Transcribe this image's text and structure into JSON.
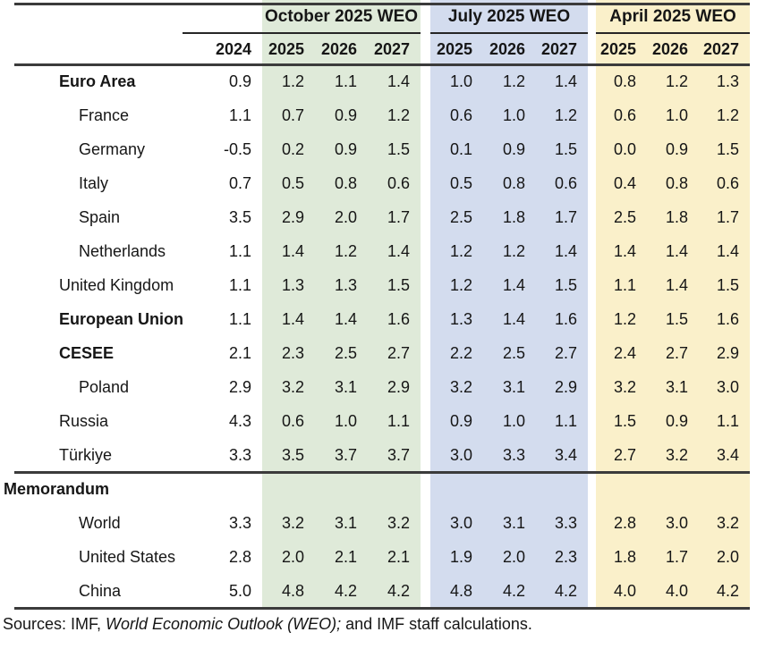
{
  "colors": {
    "october_band_bg": "#dfead9",
    "july_band_bg": "#d3dcee",
    "april_band_bg": "#faf0ca",
    "rule_color": "#3b3b3b"
  },
  "table": {
    "col_groups": [
      {
        "label": "October 2025 WEO"
      },
      {
        "label": "July 2025 WEO"
      },
      {
        "label": "April 2025 WEO"
      }
    ],
    "base_year_header": "2024",
    "year_headers": [
      "2025",
      "2026",
      "2027"
    ],
    "rows": [
      {
        "label": "Euro Area",
        "bold": true,
        "indent": 1,
        "y2024": "0.9",
        "oct": [
          "1.2",
          "1.1",
          "1.4"
        ],
        "jul": [
          "1.0",
          "1.2",
          "1.4"
        ],
        "apr": [
          "0.8",
          "1.2",
          "1.3"
        ]
      },
      {
        "label": "France",
        "bold": false,
        "indent": 2,
        "y2024": "1.1",
        "oct": [
          "0.7",
          "0.9",
          "1.2"
        ],
        "jul": [
          "0.6",
          "1.0",
          "1.2"
        ],
        "apr": [
          "0.6",
          "1.0",
          "1.2"
        ]
      },
      {
        "label": "Germany",
        "bold": false,
        "indent": 2,
        "y2024": "-0.5",
        "oct": [
          "0.2",
          "0.9",
          "1.5"
        ],
        "jul": [
          "0.1",
          "0.9",
          "1.5"
        ],
        "apr": [
          "0.0",
          "0.9",
          "1.5"
        ]
      },
      {
        "label": "Italy",
        "bold": false,
        "indent": 2,
        "y2024": "0.7",
        "oct": [
          "0.5",
          "0.8",
          "0.6"
        ],
        "jul": [
          "0.5",
          "0.8",
          "0.6"
        ],
        "apr": [
          "0.4",
          "0.8",
          "0.6"
        ]
      },
      {
        "label": "Spain",
        "bold": false,
        "indent": 2,
        "y2024": "3.5",
        "oct": [
          "2.9",
          "2.0",
          "1.7"
        ],
        "jul": [
          "2.5",
          "1.8",
          "1.7"
        ],
        "apr": [
          "2.5",
          "1.8",
          "1.7"
        ]
      },
      {
        "label": "Netherlands",
        "bold": false,
        "indent": 2,
        "y2024": "1.1",
        "oct": [
          "1.4",
          "1.2",
          "1.4"
        ],
        "jul": [
          "1.2",
          "1.2",
          "1.4"
        ],
        "apr": [
          "1.4",
          "1.4",
          "1.4"
        ]
      },
      {
        "label": "United Kingdom",
        "bold": false,
        "indent": 1,
        "y2024": "1.1",
        "oct": [
          "1.3",
          "1.3",
          "1.5"
        ],
        "jul": [
          "1.2",
          "1.4",
          "1.5"
        ],
        "apr": [
          "1.1",
          "1.4",
          "1.5"
        ]
      },
      {
        "label": "European Union",
        "bold": true,
        "indent": 1,
        "y2024": "1.1",
        "oct": [
          "1.4",
          "1.4",
          "1.6"
        ],
        "jul": [
          "1.3",
          "1.4",
          "1.6"
        ],
        "apr": [
          "1.2",
          "1.5",
          "1.6"
        ]
      },
      {
        "label": "CESEE",
        "bold": true,
        "indent": 1,
        "y2024": "2.1",
        "oct": [
          "2.3",
          "2.5",
          "2.7"
        ],
        "jul": [
          "2.2",
          "2.5",
          "2.7"
        ],
        "apr": [
          "2.4",
          "2.7",
          "2.9"
        ]
      },
      {
        "label": "Poland",
        "bold": false,
        "indent": 2,
        "y2024": "2.9",
        "oct": [
          "3.2",
          "3.1",
          "2.9"
        ],
        "jul": [
          "3.2",
          "3.1",
          "2.9"
        ],
        "apr": [
          "3.2",
          "3.1",
          "3.0"
        ]
      },
      {
        "label": "Russia",
        "bold": false,
        "indent": 1,
        "y2024": "4.3",
        "oct": [
          "0.6",
          "1.0",
          "1.1"
        ],
        "jul": [
          "0.9",
          "1.0",
          "1.1"
        ],
        "apr": [
          "1.5",
          "0.9",
          "1.1"
        ]
      },
      {
        "label": "Türkiye",
        "bold": false,
        "indent": 1,
        "y2024": "3.3",
        "oct": [
          "3.5",
          "3.7",
          "3.7"
        ],
        "jul": [
          "3.0",
          "3.3",
          "3.4"
        ],
        "apr": [
          "2.7",
          "3.2",
          "3.4"
        ]
      }
    ],
    "memo_rows": [
      {
        "label": "Memorandum",
        "bold": true,
        "indent": 0,
        "y2024": "",
        "oct": [
          "",
          "",
          ""
        ],
        "jul": [
          "",
          "",
          ""
        ],
        "apr": [
          "",
          "",
          ""
        ]
      },
      {
        "label": "World",
        "bold": false,
        "indent": 2,
        "y2024": "3.3",
        "oct": [
          "3.2",
          "3.1",
          "3.2"
        ],
        "jul": [
          "3.0",
          "3.1",
          "3.3"
        ],
        "apr": [
          "2.8",
          "3.0",
          "3.2"
        ]
      },
      {
        "label": "United States",
        "bold": false,
        "indent": 2,
        "y2024": "2.8",
        "oct": [
          "2.0",
          "2.1",
          "2.1"
        ],
        "jul": [
          "1.9",
          "2.0",
          "2.3"
        ],
        "apr": [
          "1.8",
          "1.7",
          "2.0"
        ]
      },
      {
        "label": "China",
        "bold": false,
        "indent": 2,
        "y2024": "5.0",
        "oct": [
          "4.8",
          "4.2",
          "4.2"
        ],
        "jul": [
          "4.8",
          "4.2",
          "4.2"
        ],
        "apr": [
          "4.0",
          "4.0",
          "4.2"
        ]
      }
    ]
  },
  "source_note": {
    "prefix": "Sources: IMF, ",
    "italic_part": "World Economic Outlook (WEO);",
    "suffix": " and IMF staff calculations."
  }
}
